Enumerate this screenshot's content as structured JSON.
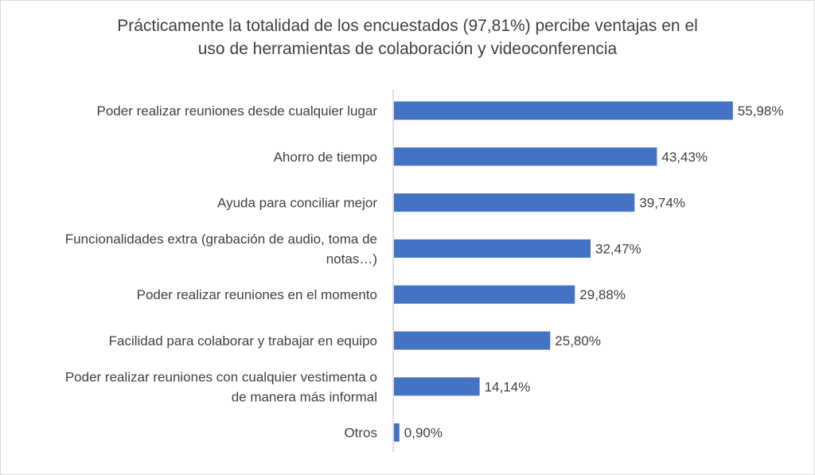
{
  "chart_data": {
    "type": "bar",
    "orientation": "horizontal",
    "title_lines": [
      "Prácticamente la totalidad de los encuestados (97,81%) percibe ventajas en el",
      "uso de herramientas de colaboración y videoconferencia"
    ],
    "categories": [
      [
        "Poder realizar reuniones desde cualquier lugar"
      ],
      [
        "Ahorro de tiempo"
      ],
      [
        "Ayuda para conciliar mejor"
      ],
      [
        "Funcionalidades extra (grabación de audio, toma de",
        "notas…)"
      ],
      [
        "Poder realizar reuniones en el momento"
      ],
      [
        "Facilidad para colaborar y trabajar en equipo"
      ],
      [
        "Poder realizar reuniones con cualquier vestimenta o",
        "de manera más informal"
      ],
      [
        "Otros"
      ]
    ],
    "values": [
      55.98,
      43.43,
      39.74,
      32.47,
      29.88,
      25.8,
      14.14,
      0.9
    ],
    "value_labels": [
      "55,98%",
      "43,43%",
      "39,74%",
      "32,47%",
      "29,88%",
      "25,80%",
      "14,14%",
      "0,90%"
    ],
    "bar_color": "#4472c4",
    "xlim": [
      0,
      56
    ],
    "grid": false,
    "legend": "none"
  }
}
